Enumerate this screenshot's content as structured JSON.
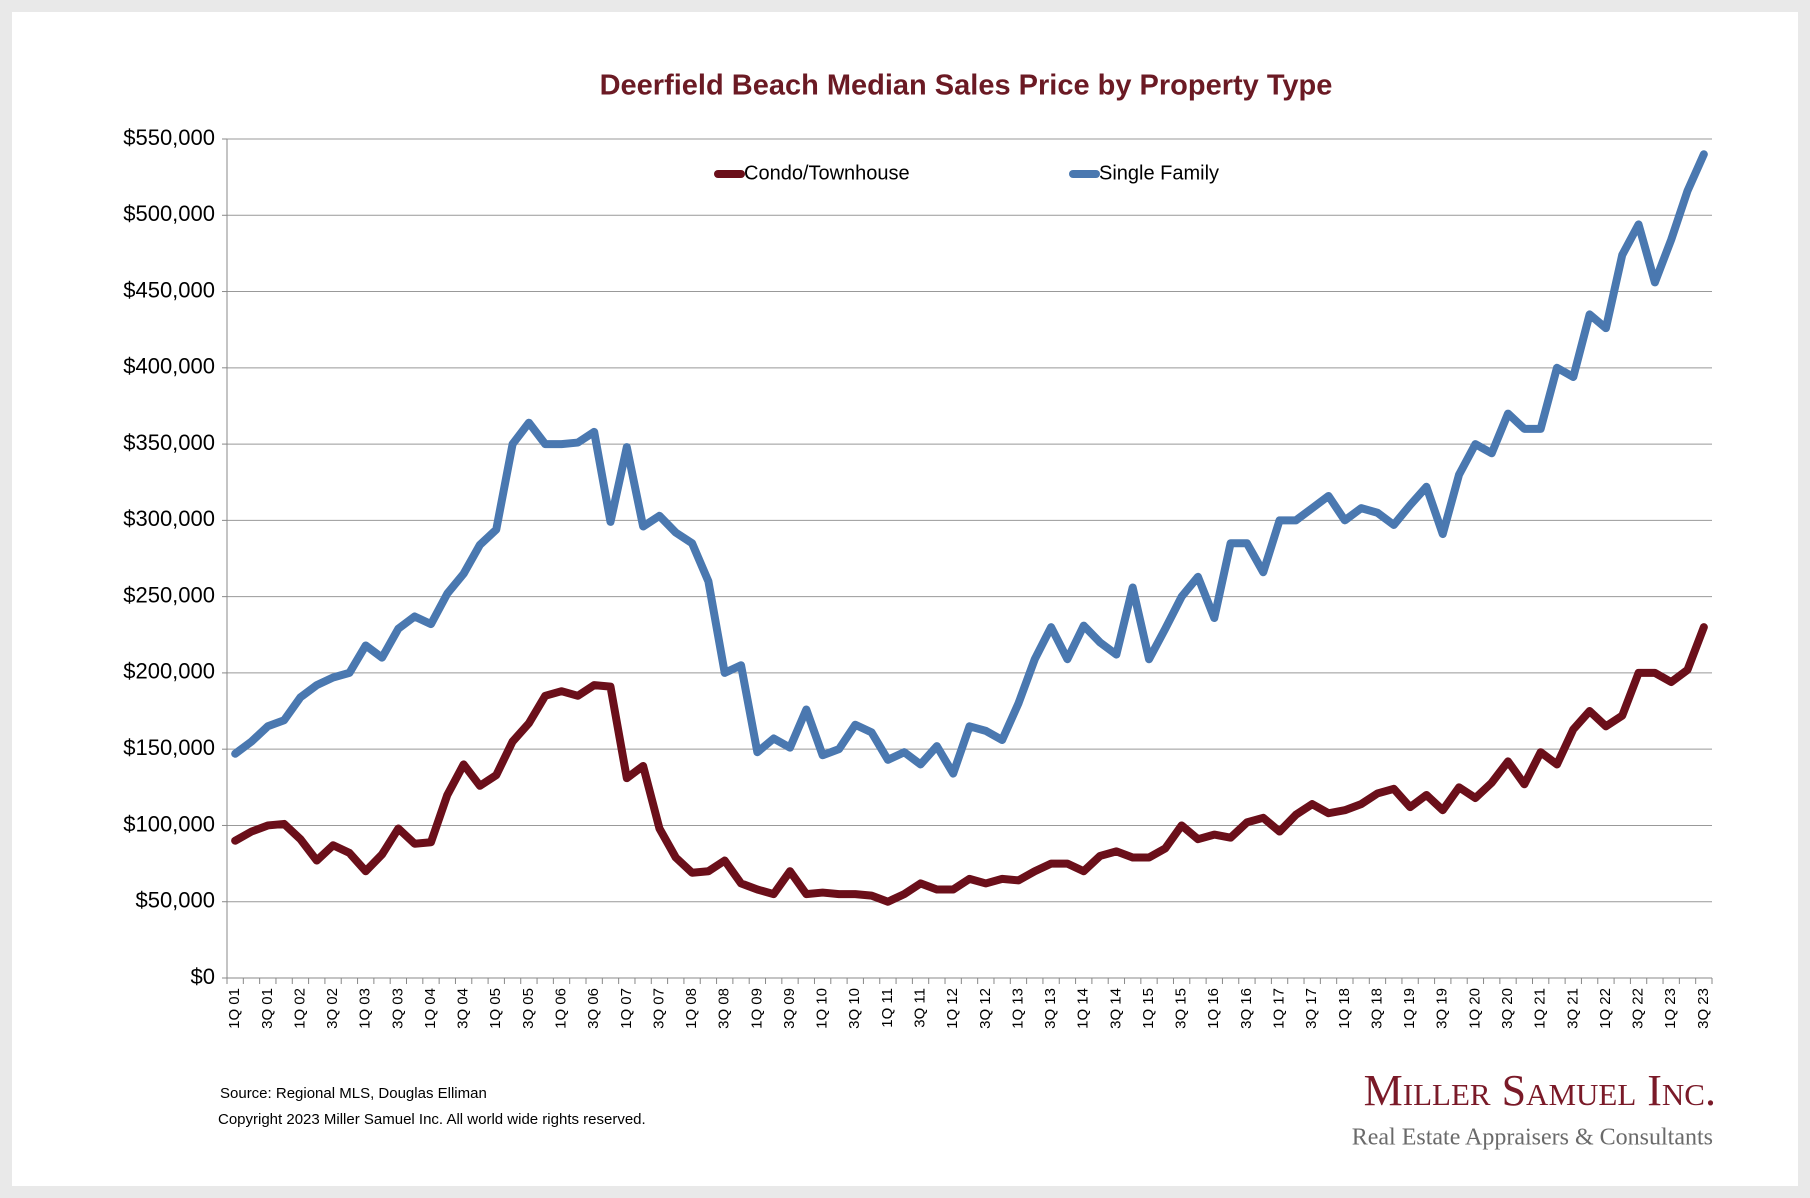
{
  "chart_data": {
    "type": "line",
    "title": "Deerfield Beach Median Sales Price by Property Type",
    "categories": [
      "1Q 01",
      null,
      "3Q 01",
      null,
      "1Q 02",
      null,
      "3Q 02",
      null,
      "1Q 03",
      null,
      "3Q 03",
      null,
      "1Q 04",
      null,
      "3Q 04",
      null,
      "1Q 05",
      null,
      "3Q 05",
      null,
      "1Q 06",
      null,
      "3Q 06",
      null,
      "1Q 07",
      null,
      "3Q 07",
      null,
      "1Q 08",
      null,
      "3Q 08",
      null,
      "1Q 09",
      null,
      "3Q 09",
      null,
      "1Q 10",
      null,
      "3Q 10",
      null,
      "1Q 11",
      null,
      "3Q 11",
      null,
      "1Q 12",
      null,
      "3Q 12",
      null,
      "1Q 13",
      null,
      "3Q 13",
      null,
      "1Q 14",
      null,
      "3Q 14",
      null,
      "1Q 15",
      null,
      "3Q 15",
      null,
      "1Q 16",
      null,
      "3Q 16",
      null,
      "1Q 17",
      null,
      "3Q 17",
      null,
      "1Q 18",
      null,
      "3Q 18",
      null,
      "1Q 19",
      null,
      "3Q 19",
      null,
      "1Q 20",
      null,
      "3Q 20",
      null,
      "1Q 21",
      null,
      "3Q 21",
      null,
      "1Q 22",
      null,
      "3Q 22",
      null,
      "1Q 23",
      null,
      "3Q 23"
    ],
    "series": [
      {
        "name": "Condo/Townhouse",
        "color": "#6b0f1a",
        "values": [
          90000,
          96000,
          100000,
          101000,
          91000,
          77000,
          87000,
          82000,
          70000,
          81000,
          98000,
          88000,
          89000,
          120000,
          140000,
          126000,
          133000,
          155000,
          167000,
          185000,
          188000,
          185000,
          192000,
          191000,
          131000,
          139000,
          98000,
          79000,
          69000,
          70000,
          77000,
          62000,
          58000,
          55000,
          70000,
          55000,
          56000,
          55000,
          55000,
          54000,
          50000,
          55000,
          62000,
          58000,
          58000,
          65000,
          62000,
          65000,
          64000,
          70000,
          75000,
          75000,
          70000,
          80000,
          83000,
          79000,
          79000,
          85000,
          100000,
          91000,
          94000,
          92000,
          102000,
          105000,
          96000,
          107000,
          114000,
          108000,
          110000,
          114000,
          121000,
          124000,
          112000,
          120000,
          110000,
          125000,
          118000,
          128000,
          142000,
          127000,
          148000,
          140000,
          163000,
          175000,
          165000,
          172000,
          200000,
          200000,
          194000,
          202000,
          230000
        ]
      },
      {
        "name": "Single Family",
        "color": "#4a78b0",
        "values": [
          147000,
          155000,
          165000,
          169000,
          184000,
          192000,
          197000,
          200000,
          218000,
          210000,
          229000,
          237000,
          232000,
          252000,
          265000,
          284000,
          294000,
          350000,
          364000,
          350000,
          350000,
          351000,
          358000,
          299000,
          348000,
          296000,
          303000,
          292000,
          285000,
          260000,
          200000,
          205000,
          148000,
          157000,
          151000,
          176000,
          146000,
          150000,
          166000,
          161000,
          143000,
          148000,
          140000,
          152000,
          134000,
          165000,
          162000,
          156000,
          180000,
          209000,
          230000,
          209000,
          231000,
          220000,
          212000,
          256000,
          209000,
          229000,
          250000,
          263000,
          236000,
          285000,
          285000,
          266000,
          300000,
          300000,
          308000,
          316000,
          300000,
          308000,
          305000,
          297000,
          310000,
          322000,
          291000,
          330000,
          350000,
          344000,
          370000,
          360000,
          360000,
          400000,
          394000,
          435000,
          426000,
          474000,
          494000,
          456000,
          484000,
          516000,
          540000
        ]
      }
    ],
    "ylim": [
      0,
      550000
    ],
    "yticks": [
      {
        "value": 0,
        "label": "$0"
      },
      {
        "value": 50000,
        "label": "$50,000"
      },
      {
        "value": 100000,
        "label": "$100,000"
      },
      {
        "value": 150000,
        "label": "$150,000"
      },
      {
        "value": 200000,
        "label": "$200,000"
      },
      {
        "value": 250000,
        "label": "$250,000"
      },
      {
        "value": 300000,
        "label": "$300,000"
      },
      {
        "value": 350000,
        "label": "$350,000"
      },
      {
        "value": 400000,
        "label": "$400,000"
      },
      {
        "value": 450000,
        "label": "$450,000"
      },
      {
        "value": 500000,
        "label": "$500,000"
      },
      {
        "value": 550000,
        "label": "$550,000"
      }
    ],
    "grid": true,
    "legend": "top",
    "source": "Source: Regional MLS, Douglas Elliman",
    "copyright": "Copyright 2023 Miller Samuel Inc.  All world wide rights reserved."
  },
  "logo": {
    "name": "Miller Samuel Inc.",
    "tagline": "Real Estate Appraisers & Consultants"
  }
}
